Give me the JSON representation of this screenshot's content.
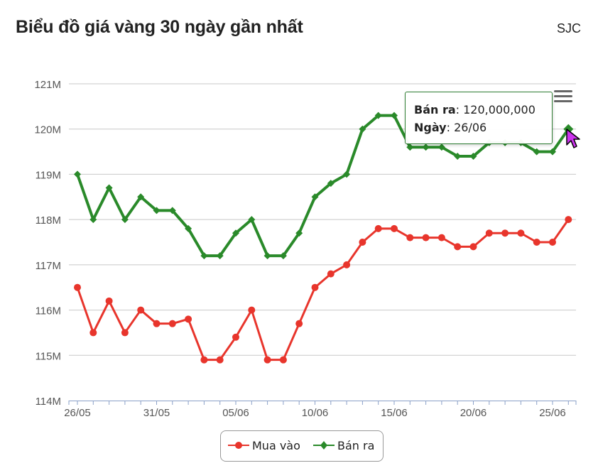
{
  "header": {
    "title": "Biểu đồ giá vàng 30 ngày gần nhất",
    "source": "SJC"
  },
  "tooltip": {
    "series_label": "Bán ra",
    "value": "120,000,000",
    "date_label": "Ngày",
    "date": "26/06"
  },
  "legend": {
    "buy": "Mua vào",
    "sell": "Bán ra"
  },
  "icons": {
    "menu": "hamburger-menu-icon",
    "cursor": "pointer-cursor-icon"
  },
  "chart_data": {
    "type": "line",
    "title": "Biểu đồ giá vàng 30 ngày gần nhất",
    "x": [
      "26/05",
      "27/05",
      "28/05",
      "29/05",
      "30/05",
      "31/05",
      "01/06",
      "02/06",
      "03/06",
      "04/06",
      "05/06",
      "06/06",
      "07/06",
      "08/06",
      "09/06",
      "10/06",
      "11/06",
      "12/06",
      "13/06",
      "14/06",
      "15/06",
      "16/06",
      "17/06",
      "18/06",
      "19/06",
      "20/06",
      "21/06",
      "22/06",
      "23/06",
      "24/06",
      "25/06",
      "26/06"
    ],
    "x_tick_labels": [
      "26/05",
      "31/05",
      "05/06",
      "10/06",
      "15/06",
      "20/06",
      "25/06"
    ],
    "y_tick_labels": [
      "114M",
      "115M",
      "116M",
      "117M",
      "118M",
      "119M",
      "120M",
      "121M"
    ],
    "ylim": [
      114,
      121
    ],
    "y_unit": "M",
    "grid": true,
    "legend_position": "bottom-center",
    "series": [
      {
        "name": "Mua vào",
        "color": "#e8352c",
        "marker": "circle",
        "values": [
          116.5,
          115.5,
          116.2,
          115.5,
          116,
          115.7,
          115.7,
          115.8,
          114.9,
          114.9,
          115.4,
          116,
          114.9,
          114.9,
          115.7,
          116.5,
          116.8,
          117,
          117.5,
          117.8,
          117.8,
          117.6,
          117.6,
          117.6,
          117.4,
          117.4,
          117.7,
          117.7,
          117.7,
          117.5,
          117.5,
          118
        ]
      },
      {
        "name": "Bán ra",
        "color": "#2a8a2a",
        "marker": "diamond",
        "values": [
          119,
          118,
          118.7,
          118,
          118.5,
          118.2,
          118.2,
          117.8,
          117.2,
          117.2,
          117.7,
          118,
          117.2,
          117.2,
          117.7,
          118.5,
          118.8,
          119,
          120,
          120.3,
          120.3,
          119.6,
          119.6,
          119.6,
          119.4,
          119.4,
          119.7,
          119.7,
          119.7,
          119.5,
          119.5,
          120
        ]
      }
    ]
  }
}
